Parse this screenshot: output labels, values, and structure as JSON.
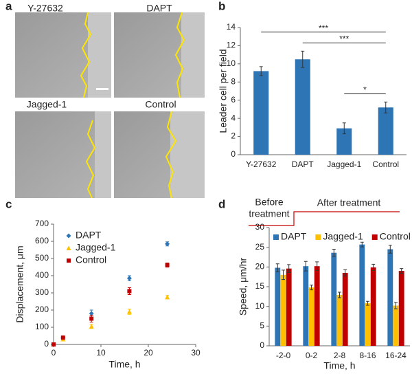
{
  "panel_labels": [
    "a",
    "b",
    "c",
    "d"
  ],
  "images": {
    "labels": [
      "Y-27632",
      "DAPT",
      "Jagged-1",
      "Control"
    ]
  },
  "chart_data": [
    {
      "type": "bar",
      "y_label": "Leader cell per field",
      "categories": [
        "Y-27632",
        "DAPT",
        "Jagged-1",
        "Control"
      ],
      "values": [
        9.2,
        10.5,
        2.9,
        5.2
      ],
      "errors": [
        0.5,
        0.9,
        0.6,
        0.6
      ],
      "color": "#2e75b6",
      "ylim": [
        0,
        14
      ],
      "yticks": [
        0,
        2,
        4,
        6,
        8,
        10,
        12,
        14
      ],
      "annotations": [
        {
          "text": "***",
          "from": 0,
          "to": 3
        },
        {
          "text": "***",
          "from": 1,
          "to": 3
        },
        {
          "text": "*",
          "from": 2,
          "to": 3
        }
      ]
    },
    {
      "type": "scatter",
      "x_label": "Time, h",
      "y_label": "Displacement, μm",
      "x": [
        0,
        2,
        8,
        16,
        24
      ],
      "series": [
        {
          "name": "DAPT",
          "color": "#2e75b6",
          "marker": "diamond",
          "values": [
            0,
            40,
            180,
            385,
            585
          ],
          "errors": [
            0,
            8,
            20,
            15,
            12
          ]
        },
        {
          "name": "Jagged-1",
          "color": "#ffc000",
          "marker": "triangle",
          "values": [
            0,
            30,
            105,
            190,
            275
          ],
          "errors": [
            0,
            8,
            12,
            15,
            10
          ]
        },
        {
          "name": "Control",
          "color": "#c00000",
          "marker": "square",
          "values": [
            0,
            40,
            150,
            310,
            462
          ],
          "errors": [
            0,
            8,
            20,
            20,
            12
          ]
        }
      ],
      "xlim": [
        0,
        30
      ],
      "xticks": [
        0,
        10,
        20,
        30
      ],
      "ylim": [
        0,
        700
      ],
      "yticks": [
        0,
        100,
        200,
        300,
        400,
        500,
        600,
        700
      ],
      "legend": "top-left"
    },
    {
      "type": "bar",
      "x_label": "Time, h",
      "y_label": "Speed, μm/hr",
      "categories": [
        "-2-0",
        "0-2",
        "2-8",
        "8-16",
        "16-24"
      ],
      "series": [
        {
          "name": "DAPT",
          "color": "#2e75b6",
          "values": [
            19.8,
            20.2,
            23.6,
            25.7,
            24.5
          ],
          "errors": [
            1.0,
            1.2,
            0.9,
            0.6,
            1.0
          ]
        },
        {
          "name": "Jagged-1",
          "color": "#ffc000",
          "values": [
            18.0,
            14.8,
            12.9,
            10.8,
            10.2
          ],
          "errors": [
            1.2,
            0.6,
            0.7,
            0.5,
            0.8
          ]
        },
        {
          "name": "Control",
          "color": "#c00000",
          "values": [
            19.6,
            20.2,
            18.5,
            19.9,
            19.0
          ],
          "errors": [
            1.0,
            1.1,
            0.8,
            0.8,
            0.6
          ]
        }
      ],
      "ylim": [
        0,
        30
      ],
      "yticks": [
        0,
        5,
        10,
        15,
        20,
        25,
        30
      ],
      "legend": "top",
      "phases": {
        "before": [
          "Before",
          "treatment"
        ],
        "after": "After treatment"
      }
    }
  ]
}
